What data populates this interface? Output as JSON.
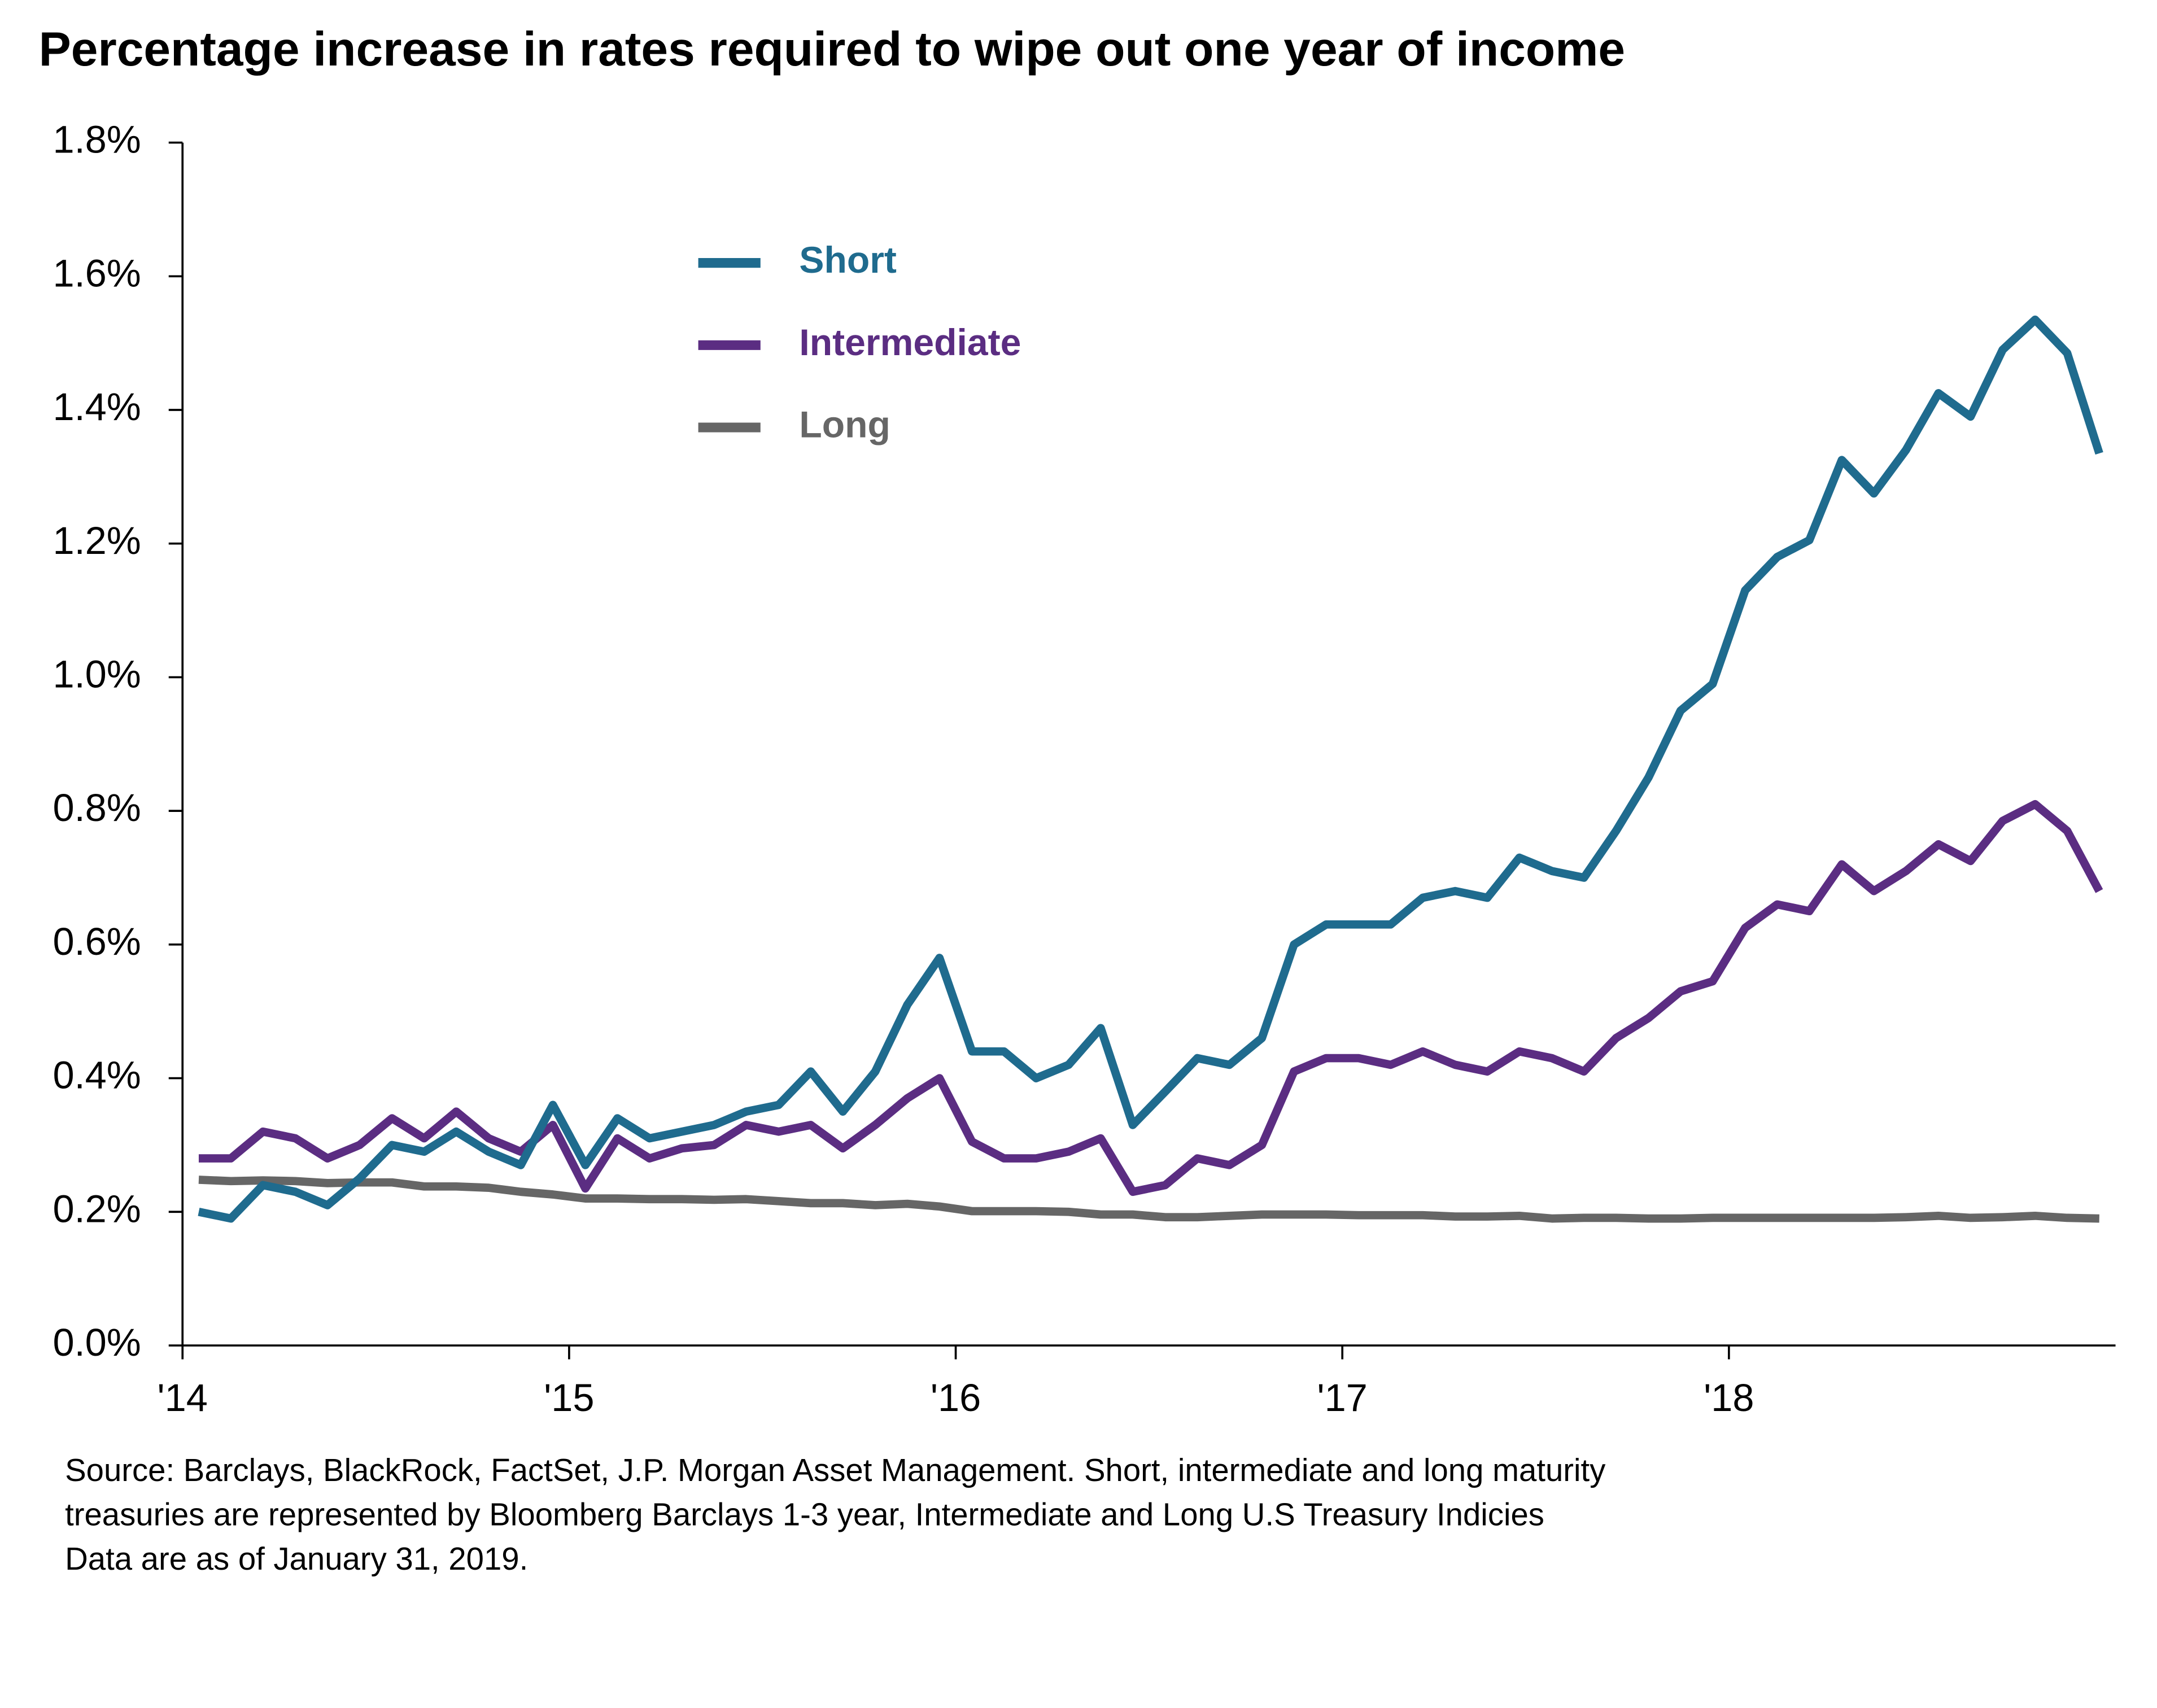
{
  "chart_data": {
    "type": "line",
    "title": "Percentage increase in rates required to wipe out one year of income",
    "x": [
      2014.042,
      2014.125,
      2014.208,
      2014.292,
      2014.375,
      2014.458,
      2014.542,
      2014.625,
      2014.708,
      2014.792,
      2014.875,
      2014.958,
      2015.042,
      2015.125,
      2015.208,
      2015.292,
      2015.375,
      2015.458,
      2015.542,
      2015.625,
      2015.708,
      2015.792,
      2015.875,
      2015.958,
      2016.042,
      2016.125,
      2016.208,
      2016.292,
      2016.375,
      2016.458,
      2016.542,
      2016.625,
      2016.708,
      2016.792,
      2016.875,
      2016.958,
      2017.042,
      2017.125,
      2017.208,
      2017.292,
      2017.375,
      2017.458,
      2017.542,
      2017.625,
      2017.708,
      2017.792,
      2017.875,
      2017.958,
      2018.042,
      2018.125,
      2018.208,
      2018.292,
      2018.375,
      2018.458,
      2018.542,
      2018.625,
      2018.708,
      2018.792,
      2018.875,
      2018.958
    ],
    "series": [
      {
        "name": "Short",
        "color": "#1f6b8e",
        "values": [
          0.2,
          0.19,
          0.24,
          0.23,
          0.21,
          0.25,
          0.3,
          0.29,
          0.32,
          0.29,
          0.27,
          0.36,
          0.27,
          0.34,
          0.31,
          0.32,
          0.33,
          0.35,
          0.36,
          0.41,
          0.35,
          0.41,
          0.51,
          0.58,
          0.44,
          0.44,
          0.4,
          0.42,
          0.475,
          0.33,
          0.38,
          0.43,
          0.42,
          0.46,
          0.6,
          0.63,
          0.63,
          0.63,
          0.67,
          0.68,
          0.67,
          0.73,
          0.71,
          0.7,
          0.77,
          0.85,
          0.95,
          0.99,
          1.13,
          1.18,
          1.205,
          1.325,
          1.275,
          1.34,
          1.425,
          1.39,
          1.49,
          1.535,
          1.485,
          1.335
        ]
      },
      {
        "name": "Intermediate",
        "color": "#5b2d82",
        "values": [
          0.28,
          0.28,
          0.32,
          0.31,
          0.28,
          0.3,
          0.34,
          0.31,
          0.35,
          0.31,
          0.29,
          0.33,
          0.235,
          0.31,
          0.28,
          0.295,
          0.3,
          0.33,
          0.32,
          0.33,
          0.295,
          0.33,
          0.37,
          0.4,
          0.305,
          0.28,
          0.28,
          0.29,
          0.31,
          0.23,
          0.24,
          0.28,
          0.27,
          0.3,
          0.41,
          0.43,
          0.43,
          0.42,
          0.44,
          0.42,
          0.41,
          0.44,
          0.43,
          0.41,
          0.46,
          0.49,
          0.53,
          0.545,
          0.625,
          0.66,
          0.65,
          0.72,
          0.68,
          0.71,
          0.75,
          0.725,
          0.785,
          0.81,
          0.77,
          0.68
        ]
      },
      {
        "name": "Long",
        "color": "#666666",
        "values": [
          0.248,
          0.246,
          0.247,
          0.246,
          0.243,
          0.244,
          0.244,
          0.238,
          0.238,
          0.236,
          0.23,
          0.226,
          0.22,
          0.22,
          0.219,
          0.219,
          0.218,
          0.219,
          0.216,
          0.213,
          0.213,
          0.21,
          0.212,
          0.208,
          0.201,
          0.201,
          0.201,
          0.2,
          0.196,
          0.196,
          0.192,
          0.192,
          0.194,
          0.196,
          0.196,
          0.196,
          0.195,
          0.195,
          0.195,
          0.193,
          0.193,
          0.194,
          0.19,
          0.191,
          0.191,
          0.19,
          0.19,
          0.191,
          0.191,
          0.191,
          0.191,
          0.191,
          0.191,
          0.192,
          0.194,
          0.191,
          0.192,
          0.194,
          0.191,
          0.19
        ]
      }
    ],
    "xlim": [
      2014,
      2019
    ],
    "xticks": [
      {
        "value": 2014,
        "label": "'14"
      },
      {
        "value": 2015,
        "label": "'15"
      },
      {
        "value": 2016,
        "label": "'16"
      },
      {
        "value": 2017,
        "label": "'17"
      },
      {
        "value": 2018,
        "label": "'18"
      }
    ],
    "ylim": [
      0,
      1.8
    ],
    "yticks": [
      {
        "value": 0,
        "label": "0.0%"
      },
      {
        "value": 0.2,
        "label": "0.2%"
      },
      {
        "value": 0.4,
        "label": "0.4%"
      },
      {
        "value": 0.6,
        "label": "0.6%"
      },
      {
        "value": 0.8,
        "label": "0.8%"
      },
      {
        "value": 1.0,
        "label": "1.0%"
      },
      {
        "value": 1.2,
        "label": "1.2%"
      },
      {
        "value": 1.4,
        "label": "1.4%"
      },
      {
        "value": 1.6,
        "label": "1.6%"
      },
      {
        "value": 1.8,
        "label": "1.8%"
      }
    ],
    "grid": false,
    "source": [
      "Source: Barclays, BlackRock, FactSet, J.P. Morgan Asset Management. Short, intermediate and long maturity",
      "treasuries are represented by Bloomberg Barclays 1-3 year, Intermediate and Long U.S Treasury Indicies",
      "Data are as of January 31, 2019."
    ]
  }
}
